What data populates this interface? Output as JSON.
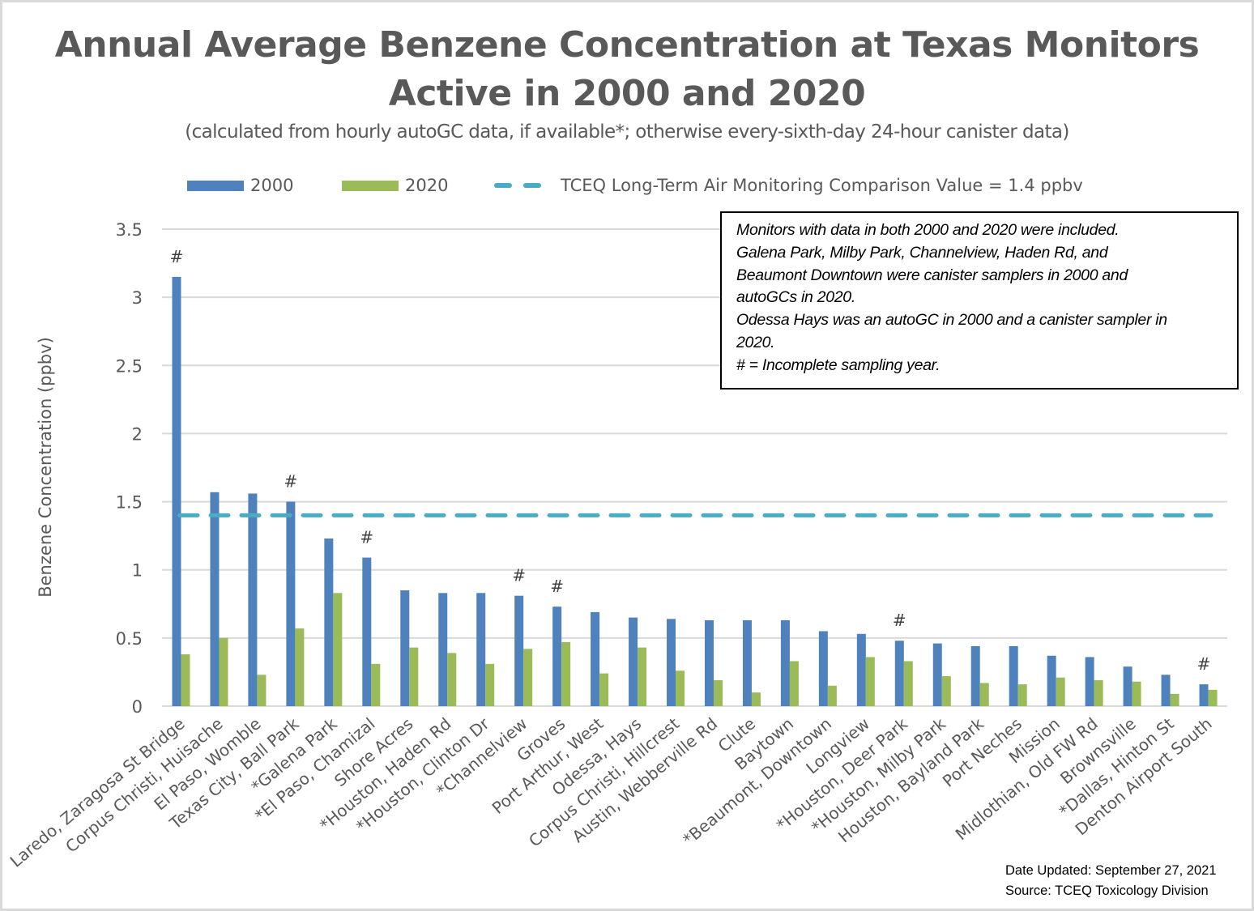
{
  "chart_data": {
    "type": "bar",
    "title": "Annual Average Benzene Concentration at Texas Monitors Active in 2000 and 2020",
    "title_lines": [
      "Annual Average Benzene Concentration at Texas Monitors",
      "Active in 2000 and 2020"
    ],
    "subtitle": "(calculated from hourly autoGC data, if available*; otherwise every-sixth-day 24-hour canister data)",
    "xlabel": "",
    "ylabel": "Benzene Concentration (ppbv)",
    "ylim": [
      0,
      3.5
    ],
    "yticks": [
      0,
      0.5,
      1,
      1.5,
      2,
      2.5,
      3,
      3.5
    ],
    "ytick_labels": [
      "0",
      "0.5",
      "1",
      "1.5",
      "2",
      "2.5",
      "3",
      "3.5"
    ],
    "grid": true,
    "legend_position": "top",
    "categories": [
      "Laredo, Zaragosa St Bridge",
      "Corpus Christi, Huisache",
      "El Paso, Womble",
      "Texas City, Ball Park",
      "*Galena Park",
      "*El Paso, Chamizal",
      "Shore Acres",
      "*Houston, Haden Rd",
      "*Houston, Clinton Dr",
      "*Channelview",
      "Groves",
      "Port Arthur, West",
      "Odessa, Hays",
      "Corpus Christi, Hillcrest",
      "Austin, Webberville Rd",
      "Clute",
      "Baytown",
      "*Beaumont, Downtown",
      "Longview",
      "*Houston, Deer Park",
      "*Houston, Milby Park",
      "Houston, Bayland Park",
      "Port Neches",
      "Mission",
      "Midlothian, Old FW Rd",
      "Brownsville",
      "*Dallas, Hinton St",
      "Denton Airport South"
    ],
    "series": [
      {
        "name": "2000",
        "color": "#4F81BD",
        "values": [
          3.15,
          1.57,
          1.56,
          1.5,
          1.23,
          1.09,
          0.85,
          0.83,
          0.83,
          0.81,
          0.73,
          0.69,
          0.65,
          0.64,
          0.63,
          0.63,
          0.63,
          0.55,
          0.53,
          0.48,
          0.46,
          0.44,
          0.44,
          0.37,
          0.36,
          0.29,
          0.23,
          0.16
        ]
      },
      {
        "name": "2020",
        "color": "#9BBB59",
        "values": [
          0.38,
          0.5,
          0.23,
          0.57,
          0.83,
          0.31,
          0.43,
          0.39,
          0.31,
          0.42,
          0.47,
          0.24,
          0.43,
          0.26,
          0.19,
          0.1,
          0.33,
          0.15,
          0.36,
          0.33,
          0.22,
          0.17,
          0.16,
          0.21,
          0.19,
          0.18,
          0.09,
          0.12
        ]
      }
    ],
    "reference_line": {
      "label": "TCEQ Long-Term Air Monitoring Comparison Value = 1.4 ppbv",
      "value": 1.4,
      "color": "#4BACC6",
      "style": "dashed"
    },
    "incomplete_marker": "#",
    "incomplete_year_flags": [
      "Laredo, Zaragosa St Bridge",
      "Texas City, Ball Park",
      "*El Paso, Chamizal",
      "*Channelview",
      "Groves",
      "*Houston, Deer Park",
      "Denton Airport South"
    ],
    "annotation_box": [
      "Monitors with data in both 2000 and 2020 were included.",
      "Galena Park, Milby Park, Channelview, Haden Rd, and",
      "Beaumont Downtown were canister samplers in 2000 and",
      "autoGCs in 2020.",
      "Odessa Hays was an autoGC in 2000 and a canister sampler in",
      "2020.",
      "# = Incomplete sampling year."
    ],
    "footer": [
      "Date Updated: September 27, 2021",
      "Source: TCEQ Toxicology Division"
    ]
  },
  "legend": {
    "s2000": "2000",
    "s2020": "2020",
    "reference": "TCEQ Long-Term Air Monitoring Comparison Value = 1.4 ppbv"
  },
  "colors": {
    "text": "#595959",
    "grid": "#d9d9d9",
    "series_2000": "#4F81BD",
    "series_2020": "#9BBB59",
    "reference": "#4BACC6"
  }
}
